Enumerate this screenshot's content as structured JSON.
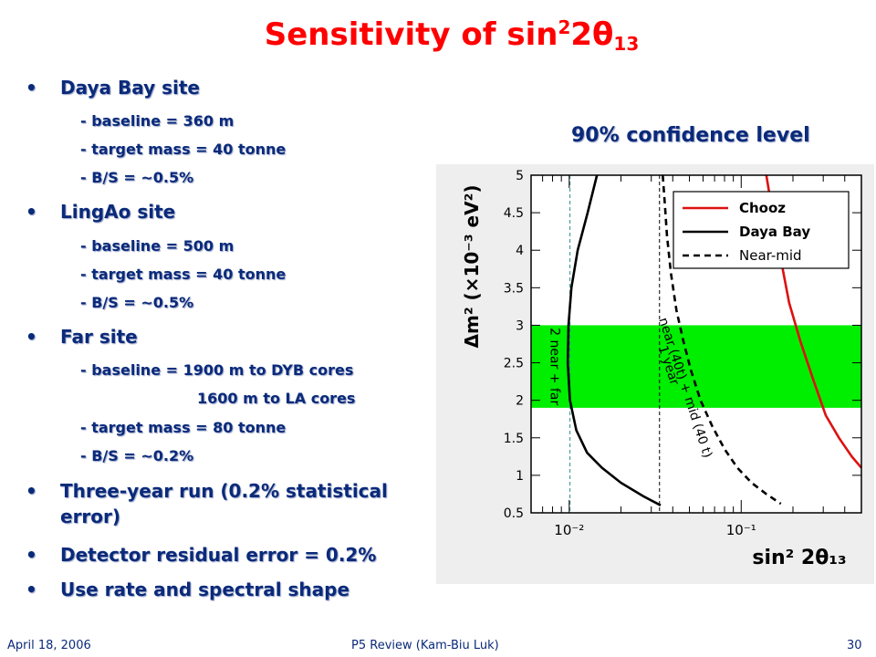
{
  "slide": {
    "title_main": "Sensitivity of sin",
    "title_sup": "2",
    "title_mid": "2θ",
    "title_sub": "13",
    "confidence_label": "90% confidence level"
  },
  "bullets": [
    {
      "text": "Daya Bay site",
      "subs": [
        "- baseline = 360 m",
        "- target mass = 40 tonne",
        "- B/S = ~0.5%"
      ]
    },
    {
      "text": "LingAo site",
      "subs": [
        "- baseline = 500 m",
        "- target mass = 40 tonne",
        "- B/S = ~0.5%"
      ]
    },
    {
      "text": "Far site",
      "subs": [
        "- baseline = 1900 m to DYB cores",
        "1600 m to LA cores",
        "- target mass = 80 tonne",
        "- B/S = ~0.2%"
      ]
    },
    {
      "text": "Three-year run (0.2% statistical",
      "cont": "error)"
    },
    {
      "text": "Detector residual error = 0.2%"
    },
    {
      "text": "Use rate and spectral shape"
    }
  ],
  "footer": {
    "date": "April 18, 2006",
    "center": "P5 Review (Kam-Biu Luk)",
    "page": "30"
  },
  "chart_data": {
    "type": "line",
    "xlabel": "sin² 2θ₁₃",
    "ylabel": "Δm² (×10⁻³ eV²)",
    "x_scale": "log",
    "xlim": [
      0.006,
      0.5
    ],
    "ylim": [
      0.5,
      5
    ],
    "x_ticks": [
      {
        "value": 0.01,
        "label": "10⁻²"
      },
      {
        "value": 0.1,
        "label": "10⁻¹"
      }
    ],
    "y_ticks": [
      0.5,
      1,
      1.5,
      2,
      2.5,
      3,
      3.5,
      4,
      4.5,
      5
    ],
    "y_tick_labels": [
      "0.5",
      "1",
      "1.5",
      "2",
      "2.5",
      "3",
      "3.5",
      "4",
      "4.5",
      "5"
    ],
    "band": {
      "y0": 1.9,
      "y1": 3.0,
      "color": "#00ee00"
    },
    "series": [
      {
        "name": "Chooz",
        "color": "#dd1111",
        "dash": false,
        "x": [
          0.14,
          0.16,
          0.19,
          0.22,
          0.26,
          0.31,
          0.37,
          0.44,
          0.5
        ],
        "y": [
          5.0,
          4.2,
          3.3,
          2.8,
          2.3,
          1.8,
          1.5,
          1.25,
          1.1
        ]
      },
      {
        "name": "Daya Bay",
        "color": "#000000",
        "dash": false,
        "x": [
          0.0145,
          0.0128,
          0.0112,
          0.0103,
          0.0099,
          0.0098,
          0.0101,
          0.011,
          0.0127,
          0.0155,
          0.02,
          0.027,
          0.034
        ],
        "y": [
          5.0,
          4.5,
          4.0,
          3.5,
          3.0,
          2.5,
          2.0,
          1.6,
          1.3,
          1.1,
          0.9,
          0.72,
          0.6
        ]
      },
      {
        "name": "Near-mid",
        "color": "#000000",
        "dash": true,
        "x": [
          0.035,
          0.036,
          0.037,
          0.039,
          0.042,
          0.046,
          0.051,
          0.058,
          0.068,
          0.08,
          0.095,
          0.115,
          0.14,
          0.17
        ],
        "y": [
          5.0,
          4.6,
          4.2,
          3.7,
          3.2,
          2.8,
          2.4,
          2.0,
          1.65,
          1.35,
          1.1,
          0.9,
          0.75,
          0.62
        ]
      }
    ],
    "vlines": [
      {
        "x": 0.0101,
        "color": "#2a8f8f"
      },
      {
        "x": 0.0335,
        "color": "#000000"
      }
    ],
    "annotations": [
      {
        "text": "2 near + far",
        "x": 0.0078,
        "y": 2.45
      },
      {
        "text": "near (40t) + mid (40 t)",
        "x": 0.045,
        "y": 2.15
      },
      {
        "text": "1 year",
        "x": 0.036,
        "y": 2.45
      }
    ],
    "legend": {
      "position": "top-right",
      "entries": [
        "Chooz",
        "Daya Bay",
        "Near-mid"
      ]
    }
  }
}
